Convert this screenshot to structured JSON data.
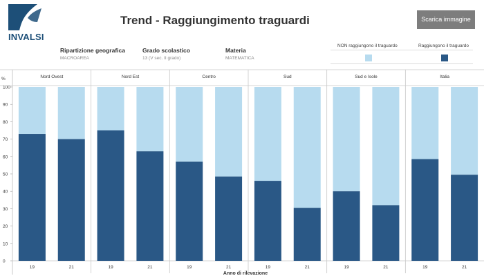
{
  "header": {
    "title": "Trend - Raggiungimento traguardi",
    "logo_text": "INVALSI",
    "download_label": "Scarica immagine"
  },
  "filters": {
    "ripartizione": {
      "label": "Ripartizione geografica",
      "value": "MACROAREA"
    },
    "grado": {
      "label": "Grado scolastico",
      "value": "13 (V sec. II grado)"
    },
    "materia": {
      "label": "Materia",
      "value": "MATEMATICA"
    }
  },
  "legend": {
    "non_label": "NON raggiungono il traguardo",
    "si_label": "Raggiungono il traguardo"
  },
  "colors": {
    "reached": "#2a5886",
    "not_reached": "#b7dbef",
    "logo": "#1d4f78",
    "button": "#7d7d7d"
  },
  "chart_data": {
    "type": "bar",
    "stacked": true,
    "y_unit": "%",
    "ylim": [
      0,
      100
    ],
    "yticks": [
      0,
      10,
      20,
      30,
      40,
      50,
      60,
      70,
      80,
      90,
      100
    ],
    "xlabel": "Anno di rilevazione",
    "series": [
      {
        "name": "Raggiungono il traguardo"
      },
      {
        "name": "NON raggiungono il traguardo"
      }
    ],
    "panels": [
      {
        "name": "Nord Ovest",
        "years": [
          "19",
          "21"
        ],
        "reached": [
          73,
          70
        ]
      },
      {
        "name": "Nord Est",
        "years": [
          "19",
          "21"
        ],
        "reached": [
          75,
          63
        ]
      },
      {
        "name": "Centro",
        "years": [
          "19",
          "21"
        ],
        "reached": [
          57,
          48.5
        ]
      },
      {
        "name": "Sud",
        "years": [
          "19",
          "21"
        ],
        "reached": [
          46,
          30.5
        ]
      },
      {
        "name": "Sud e Isole",
        "years": [
          "19",
          "21"
        ],
        "reached": [
          40,
          32
        ]
      },
      {
        "name": "Italia",
        "years": [
          "19",
          "21"
        ],
        "reached": [
          58.5,
          49.5
        ]
      }
    ]
  }
}
